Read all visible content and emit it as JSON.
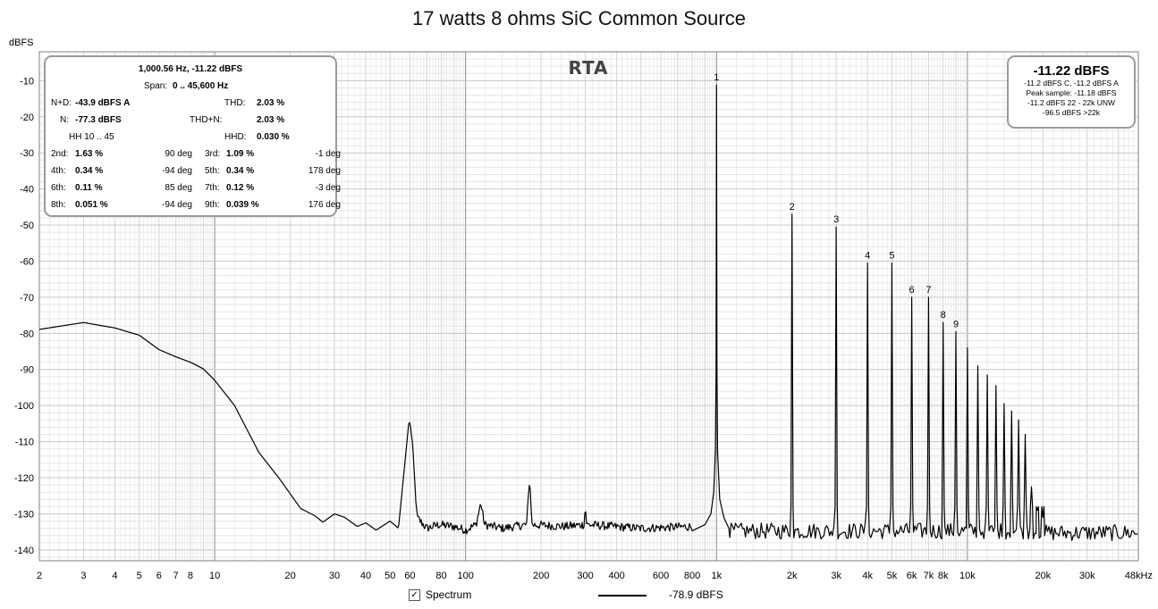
{
  "chart_data": {
    "type": "line",
    "title": "17 watts 8 ohms SiC Common Source",
    "ylabel": "dBFS",
    "xlabel": "",
    "xscale": "log",
    "xlim": [
      2,
      48000
    ],
    "ylim": [
      -143,
      -2
    ],
    "grid": true,
    "overlay_label": "RTA",
    "x_ticks": [
      {
        "v": 2,
        "label": "2"
      },
      {
        "v": 3,
        "label": "3"
      },
      {
        "v": 4,
        "label": "4"
      },
      {
        "v": 5,
        "label": "5"
      },
      {
        "v": 6,
        "label": "6"
      },
      {
        "v": 7,
        "label": "7"
      },
      {
        "v": 8,
        "label": "8"
      },
      {
        "v": 10,
        "label": "10"
      },
      {
        "v": 20,
        "label": "20"
      },
      {
        "v": 30,
        "label": "30"
      },
      {
        "v": 40,
        "label": "40"
      },
      {
        "v": 50,
        "label": "50"
      },
      {
        "v": 60,
        "label": "60"
      },
      {
        "v": 80,
        "label": "80"
      },
      {
        "v": 100,
        "label": "100"
      },
      {
        "v": 200,
        "label": "200"
      },
      {
        "v": 300,
        "label": "300"
      },
      {
        "v": 400,
        "label": "400"
      },
      {
        "v": 600,
        "label": "600"
      },
      {
        "v": 800,
        "label": "800"
      },
      {
        "v": 1000,
        "label": "1k"
      },
      {
        "v": 2000,
        "label": "2k"
      },
      {
        "v": 3000,
        "label": "3k"
      },
      {
        "v": 4000,
        "label": "4k"
      },
      {
        "v": 5000,
        "label": "5k"
      },
      {
        "v": 6000,
        "label": "6k"
      },
      {
        "v": 7000,
        "label": "7k"
      },
      {
        "v": 8000,
        "label": "8k"
      },
      {
        "v": 10000,
        "label": "10k"
      },
      {
        "v": 20000,
        "label": "20k"
      },
      {
        "v": 30000,
        "label": "30k"
      },
      {
        "v": 48000,
        "label": "48kHz"
      }
    ],
    "y_ticks": [
      {
        "v": -10,
        "label": "-10"
      },
      {
        "v": -20,
        "label": "-20"
      },
      {
        "v": -30,
        "label": "-30"
      },
      {
        "v": -40,
        "label": "-40"
      },
      {
        "v": -50,
        "label": "-50"
      },
      {
        "v": -60,
        "label": "-60"
      },
      {
        "v": -70,
        "label": "-70"
      },
      {
        "v": -80,
        "label": "-80"
      },
      {
        "v": -90,
        "label": "-90"
      },
      {
        "v": -100,
        "label": "-100"
      },
      {
        "v": -110,
        "label": "-110"
      },
      {
        "v": -120,
        "label": "-120"
      },
      {
        "v": -130,
        "label": "-130"
      },
      {
        "v": -140,
        "label": "-140"
      }
    ],
    "series": [
      {
        "name": "Spectrum",
        "color": "#000000",
        "low_frequency_curve": [
          [
            2,
            -78.9
          ],
          [
            3,
            -77.0
          ],
          [
            4,
            -78.5
          ],
          [
            5,
            -80.5
          ],
          [
            6,
            -84.5
          ],
          [
            7,
            -86.5
          ],
          [
            8,
            -88.0
          ],
          [
            9,
            -89.8
          ],
          [
            10,
            -93.0
          ],
          [
            12,
            -100.0
          ],
          [
            15,
            -113.0
          ],
          [
            18,
            -120.0
          ],
          [
            22,
            -128.5
          ],
          [
            25,
            -130.5
          ],
          [
            27,
            -132.3
          ],
          [
            30,
            -130.0
          ],
          [
            33,
            -131.0
          ],
          [
            37,
            -133.5
          ],
          [
            40,
            -132.5
          ],
          [
            44,
            -134.5
          ],
          [
            50,
            -132.0
          ],
          [
            54,
            -134.0
          ],
          [
            58,
            -112.0
          ],
          [
            59.5,
            -104.0
          ],
          [
            61,
            -108.0
          ],
          [
            64,
            -131.0
          ],
          [
            70,
            -134.0
          ],
          [
            78,
            -133.0
          ],
          [
            90,
            -133.5
          ],
          [
            100,
            -134.5
          ],
          [
            110,
            -133.0
          ],
          [
            115,
            -127.0
          ],
          [
            119,
            -133.0
          ],
          [
            140,
            -134.0
          ],
          [
            175,
            -133.0
          ],
          [
            180,
            -120.0
          ],
          [
            184,
            -133.0
          ],
          [
            250,
            -133.5
          ],
          [
            296,
            -133.0
          ],
          [
            300,
            -128.0
          ],
          [
            304,
            -133.0
          ],
          [
            500,
            -134.0
          ],
          [
            800,
            -133.5
          ]
        ],
        "noise_floor": [
          -137,
          -132.5
        ],
        "fundamental": {
          "x": 1000.56,
          "y": -11.22
        },
        "harmonics": [
          {
            "n": 1,
            "x": 1000,
            "y": -11.2,
            "label": "1"
          },
          {
            "n": 2,
            "x": 2000,
            "y": -47.0,
            "label": "2"
          },
          {
            "n": 3,
            "x": 3000,
            "y": -50.5,
            "label": "3"
          },
          {
            "n": 4,
            "x": 4000,
            "y": -60.5,
            "label": "4"
          },
          {
            "n": 5,
            "x": 5000,
            "y": -60.5,
            "label": "5"
          },
          {
            "n": 6,
            "x": 6000,
            "y": -70.0,
            "label": "6"
          },
          {
            "n": 7,
            "x": 7000,
            "y": -70.0,
            "label": "7"
          },
          {
            "n": 8,
            "x": 8000,
            "y": -77.0,
            "label": "8"
          },
          {
            "n": 9,
            "x": 9000,
            "y": -79.5,
            "label": "9"
          },
          {
            "n": 10,
            "x": 10000,
            "y": -84.0,
            "label": ""
          },
          {
            "n": 11,
            "x": 11000,
            "y": -89.0,
            "label": ""
          },
          {
            "n": 12,
            "x": 12000,
            "y": -91.5,
            "label": ""
          },
          {
            "n": 13,
            "x": 13000,
            "y": -94.5,
            "label": ""
          },
          {
            "n": 14,
            "x": 14000,
            "y": -99.5,
            "label": ""
          },
          {
            "n": 15,
            "x": 15000,
            "y": -101.5,
            "label": ""
          },
          {
            "n": 16,
            "x": 16000,
            "y": -104.0,
            "label": ""
          },
          {
            "n": 17,
            "x": 17000,
            "y": -108.0,
            "label": ""
          },
          {
            "n": 18,
            "x": 18000,
            "y": -122.5,
            "label": ""
          },
          {
            "n": 19,
            "x": 19000,
            "y": -129.0,
            "label": ""
          },
          {
            "n": 20,
            "x": 20000,
            "y": -131.0,
            "label": ""
          }
        ]
      }
    ]
  },
  "stats_panel": {
    "header": "1,000.56 Hz, -11.22 dBFS",
    "span": {
      "label": "Span:",
      "value": "0 .. 45,600 Hz"
    },
    "nd": {
      "label": "N+D:",
      "value": "-43.9 dBFS A"
    },
    "thd": {
      "label": "THD:",
      "value": "2.03 %"
    },
    "n": {
      "label": "N:",
      "value": "-77.3 dBFS"
    },
    "thdn": {
      "label": "THD+N:",
      "value": "2.03 %"
    },
    "hh": "HH 10 .. 45",
    "hhd": {
      "label": "HHD:",
      "value": "0.030 %"
    },
    "harmonic_rows": [
      {
        "l_label": "2nd:",
        "l_value": "1.63 %",
        "l_phase": "90 deg",
        "r_label": "3rd:",
        "r_value": "1.09 %",
        "r_phase": "-1 deg"
      },
      {
        "l_label": "4th:",
        "l_value": "0.34 %",
        "l_phase": "-94 deg",
        "r_label": "5th:",
        "r_value": "0.34 %",
        "r_phase": "178 deg"
      },
      {
        "l_label": "6th:",
        "l_value": "0.11 %",
        "l_phase": "85 deg",
        "r_label": "7th:",
        "r_value": "0.12 %",
        "r_phase": "-3 deg"
      },
      {
        "l_label": "8th:",
        "l_value": "0.051 %",
        "l_phase": "-94 deg",
        "r_label": "9th:",
        "r_value": "0.039 %",
        "r_phase": "176 deg"
      }
    ]
  },
  "peak_panel": {
    "big": "-11.22 dBFS",
    "lines": [
      "-11.2 dBFS C, -11.2 dBFS A",
      "Peak sample: -11.18 dBFS",
      "-11.2 dBFS 22 - 22k UNW",
      "-96.5 dBFS >22k"
    ]
  },
  "legend": {
    "checkbox": "✓",
    "label": "Spectrum",
    "value": "-78.9 dBFS"
  }
}
